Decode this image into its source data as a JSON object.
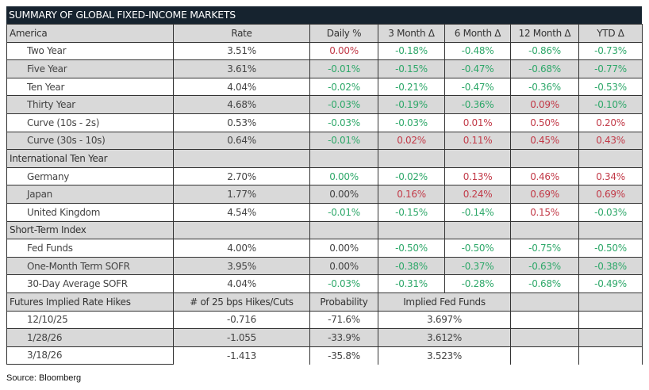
{
  "title": "SUMMARY OF GLOBAL FIXED-INCOME MARKETS",
  "colors": {
    "header_bg": "#16232f",
    "positive": "#c23a48",
    "negative": "#2fa86a",
    "row_alt": "#d9d9d9"
  },
  "header": [
    "America",
    "Rate",
    "Daily %",
    "3 Month Δ",
    "6 Month Δ",
    "12 Month Δ",
    "YTD Δ"
  ],
  "sections": [
    {
      "rows": [
        {
          "label": "Two Year",
          "cells": [
            [
              "3.51%",
              "n"
            ],
            [
              "0.00%",
              "r"
            ],
            [
              "-0.18%",
              "g"
            ],
            [
              "-0.48%",
              "g"
            ],
            [
              "-0.86%",
              "g"
            ],
            [
              "-0.73%",
              "g"
            ]
          ]
        },
        {
          "label": "Five Year",
          "cells": [
            [
              "3.61%",
              "n"
            ],
            [
              "-0.01%",
              "g"
            ],
            [
              "-0.15%",
              "g"
            ],
            [
              "-0.47%",
              "g"
            ],
            [
              "-0.68%",
              "g"
            ],
            [
              "-0.77%",
              "g"
            ]
          ]
        },
        {
          "label": "Ten Year",
          "cells": [
            [
              "4.04%",
              "n"
            ],
            [
              "-0.02%",
              "g"
            ],
            [
              "-0.21%",
              "g"
            ],
            [
              "-0.47%",
              "g"
            ],
            [
              "-0.36%",
              "g"
            ],
            [
              "-0.53%",
              "g"
            ]
          ]
        },
        {
          "label": "Thirty Year",
          "cells": [
            [
              "4.68%",
              "n"
            ],
            [
              "-0.03%",
              "g"
            ],
            [
              "-0.19%",
              "g"
            ],
            [
              "-0.36%",
              "g"
            ],
            [
              "0.09%",
              "r"
            ],
            [
              "-0.10%",
              "g"
            ]
          ]
        },
        {
          "label": "Curve (10s - 2s)",
          "cells": [
            [
              "0.53%",
              "n"
            ],
            [
              "-0.03%",
              "g"
            ],
            [
              "-0.03%",
              "g"
            ],
            [
              "0.01%",
              "r"
            ],
            [
              "0.50%",
              "r"
            ],
            [
              "0.20%",
              "r"
            ]
          ]
        },
        {
          "label": "Curve (30s - 10s)",
          "cells": [
            [
              "0.64%",
              "n"
            ],
            [
              "-0.01%",
              "g"
            ],
            [
              "0.02%",
              "r"
            ],
            [
              "0.11%",
              "r"
            ],
            [
              "0.45%",
              "r"
            ],
            [
              "0.43%",
              "r"
            ]
          ]
        }
      ]
    },
    {
      "heading": "International Ten Year",
      "rows": [
        {
          "label": "Germany",
          "cells": [
            [
              "2.70%",
              "n"
            ],
            [
              "0.00%",
              "g"
            ],
            [
              "-0.02%",
              "g"
            ],
            [
              "0.13%",
              "r"
            ],
            [
              "0.46%",
              "r"
            ],
            [
              "0.34%",
              "r"
            ]
          ]
        },
        {
          "label": "Japan",
          "cells": [
            [
              "1.77%",
              "n"
            ],
            [
              "0.00%",
              "n"
            ],
            [
              "0.16%",
              "r"
            ],
            [
              "0.24%",
              "r"
            ],
            [
              "0.69%",
              "r"
            ],
            [
              "0.69%",
              "r"
            ]
          ]
        },
        {
          "label": "United Kingdom",
          "cells": [
            [
              "4.54%",
              "n"
            ],
            [
              "-0.01%",
              "g"
            ],
            [
              "-0.15%",
              "g"
            ],
            [
              "-0.14%",
              "g"
            ],
            [
              "0.15%",
              "r"
            ],
            [
              "-0.03%",
              "g"
            ]
          ]
        }
      ]
    },
    {
      "heading": "Short-Term Index",
      "rows": [
        {
          "label": "Fed Funds",
          "cells": [
            [
              "4.00%",
              "n"
            ],
            [
              "0.00%",
              "n"
            ],
            [
              "-0.50%",
              "g"
            ],
            [
              "-0.50%",
              "g"
            ],
            [
              "-0.75%",
              "g"
            ],
            [
              "-0.50%",
              "g"
            ]
          ]
        },
        {
          "label": "One-Month Term SOFR",
          "cells": [
            [
              "3.95%",
              "n"
            ],
            [
              "0.00%",
              "n"
            ],
            [
              "-0.38%",
              "g"
            ],
            [
              "-0.37%",
              "g"
            ],
            [
              "-0.63%",
              "g"
            ],
            [
              "-0.38%",
              "g"
            ]
          ]
        },
        {
          "label": "30-Day Average SOFR",
          "cells": [
            [
              "4.04%",
              "n"
            ],
            [
              "-0.03%",
              "g"
            ],
            [
              "-0.31%",
              "g"
            ],
            [
              "-0.28%",
              "g"
            ],
            [
              "-0.68%",
              "g"
            ],
            [
              "-0.49%",
              "g"
            ]
          ]
        }
      ]
    }
  ],
  "futures": {
    "header": [
      "Futures Implied Rate Hikes",
      "# of 25 bps Hikes/Cuts",
      "Probability",
      "Implied Fed Funds"
    ],
    "rows": [
      {
        "date": "12/10/25",
        "hikes": "-0.716",
        "probability": "-71.6%",
        "implied": "3.697%"
      },
      {
        "date": "1/28/26",
        "hikes": "-1.055",
        "probability": "-33.9%",
        "implied": "3.612%"
      },
      {
        "date": "3/18/26",
        "hikes": "-1.413",
        "probability": "-35.8%",
        "implied": "3.523%"
      }
    ]
  },
  "source": "Source: Bloomberg"
}
